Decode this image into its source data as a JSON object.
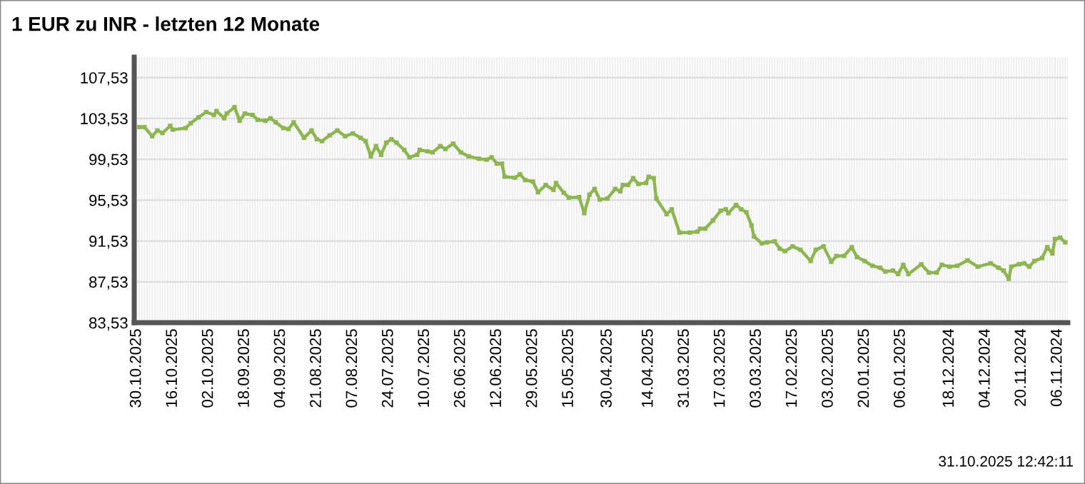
{
  "chart_data": {
    "type": "line",
    "title": "1 EUR zu INR - letzten 12 Monate",
    "annotations": [
      "31.10.2025 12:42:11"
    ],
    "x": [
      "2025-10-29",
      "2025-10-27",
      "2025-10-24",
      "2025-10-22",
      "2025-10-20",
      "2025-10-17",
      "2025-10-16",
      "2025-10-11",
      "2025-10-09",
      "2025-10-06",
      "2025-10-03",
      "2025-09-30",
      "2025-09-29",
      "2025-09-26",
      "2025-09-25",
      "2025-09-22",
      "2025-09-20",
      "2025-09-18",
      "2025-09-15",
      "2025-09-13",
      "2025-09-10",
      "2025-09-08",
      "2025-09-06",
      "2025-09-03",
      "2025-09-01",
      "2025-08-30",
      "2025-08-26",
      "2025-08-23",
      "2025-08-21",
      "2025-08-19",
      "2025-08-16",
      "2025-08-13",
      "2025-08-10",
      "2025-08-07",
      "2025-08-04",
      "2025-08-02",
      "2025-07-31",
      "2025-07-29",
      "2025-07-27",
      "2025-07-25",
      "2025-07-23",
      "2025-07-21",
      "2025-07-18",
      "2025-07-16",
      "2025-07-13",
      "2025-07-12",
      "2025-07-09",
      "2025-07-07",
      "2025-07-04",
      "2025-07-02",
      "2025-06-29",
      "2025-06-26",
      "2025-06-23",
      "2025-06-19",
      "2025-06-16",
      "2025-06-14",
      "2025-06-12",
      "2025-06-10",
      "2025-06-09",
      "2025-06-05",
      "2025-06-03",
      "2025-06-01",
      "2025-05-29",
      "2025-05-27",
      "2025-05-24",
      "2025-05-21",
      "2025-05-20",
      "2025-05-17",
      "2025-05-15",
      "2025-05-11",
      "2025-05-09",
      "2025-05-07",
      "2025-05-05",
      "2025-05-03",
      "2025-04-30",
      "2025-04-27",
      "2025-04-25",
      "2025-04-24",
      "2025-04-22",
      "2025-04-20",
      "2025-04-18",
      "2025-04-15",
      "2025-04-14",
      "2025-04-12",
      "2025-04-11",
      "2025-04-07",
      "2025-04-05",
      "2025-04-02",
      "2025-03-29",
      "2025-03-26",
      "2025-03-25",
      "2025-03-23",
      "2025-03-20",
      "2025-03-17",
      "2025-03-15",
      "2025-03-14",
      "2025-03-11",
      "2025-03-09",
      "2025-03-07",
      "2025-03-05",
      "2025-03-04",
      "2025-03-01",
      "2025-02-27",
      "2025-02-24",
      "2025-02-22",
      "2025-02-20",
      "2025-02-17",
      "2025-02-14",
      "2025-02-10",
      "2025-02-08",
      "2025-02-05",
      "2025-02-02",
      "2025-01-31",
      "2025-01-28",
      "2025-01-25",
      "2025-01-23",
      "2025-01-20",
      "2025-01-17",
      "2025-01-14",
      "2025-01-12",
      "2025-01-09",
      "2025-01-07",
      "2025-01-05",
      "2025-01-03",
      "2024-12-29",
      "2024-12-26",
      "2024-12-23",
      "2024-12-21",
      "2024-12-18",
      "2024-12-15",
      "2024-12-11",
      "2024-12-07",
      "2024-12-02",
      "2024-11-29",
      "2024-11-27",
      "2024-11-25",
      "2024-11-24",
      "2024-11-21",
      "2024-11-19",
      "2024-11-17",
      "2024-11-15",
      "2024-11-12",
      "2024-11-10",
      "2024-11-08",
      "2024-11-07",
      "2024-11-05",
      "2024-11-03"
    ],
    "series": [
      {
        "color": "#8db650",
        "values": [
          102.68,
          102.68,
          101.78,
          102.35,
          102.1,
          102.8,
          102.43,
          102.58,
          103.06,
          103.63,
          104.15,
          103.87,
          104.25,
          103.54,
          104.01,
          104.63,
          103.3,
          104.01,
          103.87,
          103.39,
          103.3,
          103.54,
          103.15,
          102.58,
          102.49,
          103.15,
          101.63,
          102.35,
          101.49,
          101.3,
          101.87,
          102.35,
          101.78,
          102.06,
          101.63,
          101.3,
          99.82,
          100.82,
          99.96,
          101.15,
          101.49,
          101.15,
          100.44,
          99.72,
          99.96,
          100.44,
          100.3,
          100.2,
          100.82,
          100.53,
          101.06,
          100.2,
          99.82,
          99.58,
          99.49,
          99.72,
          99.1,
          99.1,
          97.82,
          97.72,
          98.06,
          97.49,
          97.35,
          96.3,
          97.01,
          96.53,
          97.2,
          96.25,
          95.77,
          95.82,
          94.25,
          96.06,
          96.63,
          95.58,
          95.68,
          96.63,
          96.39,
          97.01,
          97.01,
          97.68,
          97.11,
          97.2,
          97.82,
          97.68,
          95.68,
          94.15,
          94.63,
          92.35,
          92.35,
          92.44,
          92.73,
          92.73,
          93.54,
          94.49,
          94.63,
          94.25,
          95.06,
          94.63,
          94.34,
          93.06,
          91.96,
          91.29,
          91.39,
          91.49,
          90.77,
          90.53,
          91.0,
          90.67,
          89.57,
          90.67,
          91.0,
          89.49,
          90.06,
          90.06,
          90.92,
          89.96,
          89.57,
          89.1,
          88.91,
          88.53,
          88.63,
          88.29,
          89.2,
          88.29,
          89.25,
          88.43,
          88.43,
          89.2,
          89.01,
          89.1,
          89.63,
          89.01,
          89.34,
          88.91,
          88.63,
          87.82,
          89.01,
          89.25,
          89.34,
          89.01,
          89.57,
          89.86,
          90.92,
          90.3,
          91.72,
          91.86,
          91.39
        ]
      }
    ],
    "xlim": [
      "2025-10-31",
      "2024-11-02"
    ],
    "xticks": [
      {
        "value": "2025-10-30",
        "label": "30.10.2025"
      },
      {
        "value": "2025-10-16",
        "label": "16.10.2025"
      },
      {
        "value": "2025-10-02",
        "label": "02.10.2025"
      },
      {
        "value": "2025-09-18",
        "label": "18.09.2025"
      },
      {
        "value": "2025-09-04",
        "label": "04.09.2025"
      },
      {
        "value": "2025-08-21",
        "label": "21.08.2025"
      },
      {
        "value": "2025-08-07",
        "label": "07.08.2025"
      },
      {
        "value": "2025-07-24",
        "label": "24.07.2025"
      },
      {
        "value": "2025-07-10",
        "label": "10.07.2025"
      },
      {
        "value": "2025-06-26",
        "label": "26.06.2025"
      },
      {
        "value": "2025-06-12",
        "label": "12.06.2025"
      },
      {
        "value": "2025-05-29",
        "label": "29.05.2025"
      },
      {
        "value": "2025-05-15",
        "label": "15.05.2025"
      },
      {
        "value": "2025-04-30",
        "label": "30.04.2025"
      },
      {
        "value": "2025-04-14",
        "label": "14.04.2025"
      },
      {
        "value": "2025-03-31",
        "label": "31.03.2025"
      },
      {
        "value": "2025-03-17",
        "label": "17.03.2025"
      },
      {
        "value": "2025-03-03",
        "label": "03.03.2025"
      },
      {
        "value": "2025-02-17",
        "label": "17.02.2025"
      },
      {
        "value": "2025-02-03",
        "label": "03.02.2025"
      },
      {
        "value": "2025-01-20",
        "label": "20.01.2025"
      },
      {
        "value": "2025-01-06",
        "label": "06.01.2025"
      },
      {
        "value": "2024-12-18",
        "label": "18.12.2024"
      },
      {
        "value": "2024-12-04",
        "label": "04.12.2024"
      },
      {
        "value": "2024-11-20",
        "label": "20.11.2024"
      },
      {
        "value": "2024-11-06",
        "label": "06.11.2024"
      }
    ],
    "ylim": [
      83.53,
      109.53
    ],
    "yticks": [
      {
        "value": 83.53,
        "label": "83,53"
      },
      {
        "value": 87.53,
        "label": "87,53"
      },
      {
        "value": 91.53,
        "label": "91,53"
      },
      {
        "value": 95.53,
        "label": "95,53"
      },
      {
        "value": 99.53,
        "label": "99,53"
      },
      {
        "value": 103.53,
        "label": "103,53"
      },
      {
        "value": 107.53,
        "label": "107,53"
      }
    ],
    "grid": true,
    "marker": "square",
    "line_style": "solid"
  }
}
